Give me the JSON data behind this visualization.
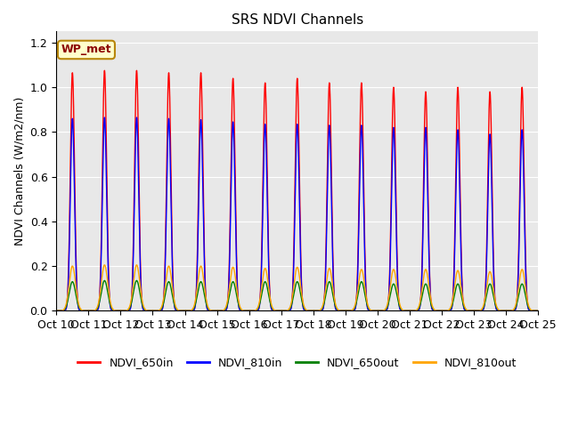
{
  "title": "SRS NDVI Channels",
  "ylabel": "NDVI Channels (W/m2/nm)",
  "xlabel": "",
  "annotation": "WP_met",
  "legend_labels": [
    "NDVI_650in",
    "NDVI_810in",
    "NDVI_650out",
    "NDVI_810out"
  ],
  "line_colors": [
    "red",
    "blue",
    "green",
    "orange"
  ],
  "ylim": [
    0,
    1.25
  ],
  "background_color": "#e8e8e8",
  "num_days": 15,
  "start_day": 10,
  "peak_650in": [
    1.065,
    1.075,
    1.075,
    1.065,
    1.065,
    1.04,
    1.02,
    1.04,
    1.02,
    1.02,
    1.0,
    0.98,
    1.0,
    0.98,
    1.0
  ],
  "peak_810in": [
    0.86,
    0.865,
    0.865,
    0.86,
    0.855,
    0.845,
    0.835,
    0.835,
    0.83,
    0.83,
    0.82,
    0.82,
    0.81,
    0.79,
    0.81
  ],
  "peak_650out": [
    0.13,
    0.135,
    0.135,
    0.13,
    0.13,
    0.13,
    0.13,
    0.13,
    0.13,
    0.13,
    0.12,
    0.12,
    0.12,
    0.12,
    0.12
  ],
  "peak_810out": [
    0.2,
    0.205,
    0.205,
    0.2,
    0.2,
    0.195,
    0.19,
    0.195,
    0.19,
    0.185,
    0.185,
    0.185,
    0.18,
    0.175,
    0.185
  ],
  "pts_per_day": 500,
  "sigma": 0.065,
  "sigma_small": 0.1
}
